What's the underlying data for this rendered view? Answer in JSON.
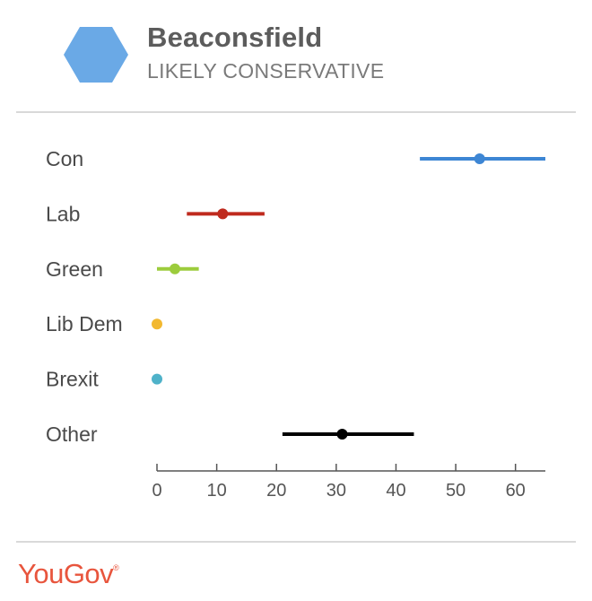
{
  "header": {
    "title": "Beaconsfield",
    "subtitle": "LIKELY CONSERVATIVE",
    "hex_color": "#6aa9e6"
  },
  "brand": {
    "logo": "YouGov",
    "mark": "®",
    "color": "#e8553d"
  },
  "chart_data": {
    "type": "scatter",
    "title": "",
    "xlabel": "",
    "ylabel": "",
    "xlim": [
      0,
      65
    ],
    "xticks": [
      0,
      10,
      20,
      30,
      40,
      50,
      60
    ],
    "series": [
      {
        "name": "Con",
        "value": 54,
        "low": 44,
        "high": 65,
        "color": "#3d86d4"
      },
      {
        "name": "Lab",
        "value": 11,
        "low": 5,
        "high": 18,
        "color": "#bf2a1e"
      },
      {
        "name": "Green",
        "value": 3,
        "low": 0,
        "high": 7,
        "color": "#9ccc3c"
      },
      {
        "name": "Lib Dem",
        "value": 0,
        "low": 0,
        "high": 0,
        "color": "#f2b830"
      },
      {
        "name": "Brexit",
        "value": 0,
        "low": 0,
        "high": 0,
        "color": "#4fb2c9"
      },
      {
        "name": "Other",
        "value": 31,
        "low": 21,
        "high": 43,
        "color": "#000000"
      }
    ]
  }
}
